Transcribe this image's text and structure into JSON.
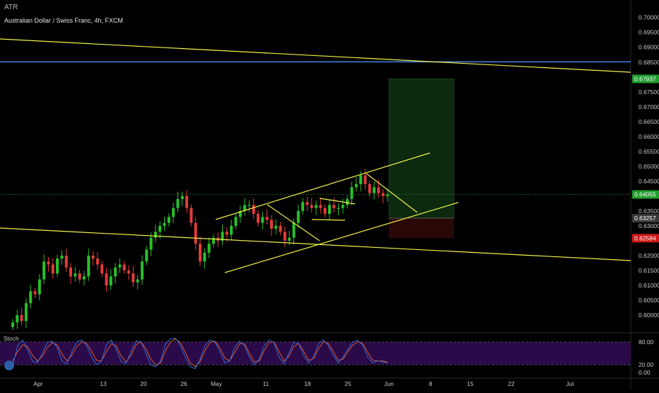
{
  "toolbar": {
    "indicator_label": "ATR"
  },
  "header": {
    "symbol_line": "Australian Dollar / Swiss Franc, 4h, FXCM"
  },
  "oscillator": {
    "label": "Stoch",
    "ticks": [
      "80.00",
      "20.00",
      "0.00"
    ]
  },
  "colors": {
    "background": "#000000",
    "axis_text": "#c8c8c8",
    "trendline": "#f2f24a",
    "hline": "#3d7bd8",
    "up_candle": "#26c229",
    "down_candle": "#e33b3b",
    "stoch_k": "#2f6bd6",
    "stoch_d": "#e05a2a",
    "stoch_band": "#2a0a48"
  },
  "chart_data": {
    "type": "candlestick",
    "ylim": [
      0.595,
      0.7035
    ],
    "y_ticks": [
      "0.70000",
      "0.69500",
      "0.69000",
      "0.68500",
      "0.68000",
      "0.67500",
      "0.67000",
      "0.66500",
      "0.66000",
      "0.65500",
      "0.65000",
      "0.64500",
      "0.63500",
      "0.63000",
      "0.62000",
      "0.61500",
      "0.61000",
      "0.60500",
      "0.60000"
    ],
    "x_ticks": [
      "Apr",
      "13",
      "20",
      "26",
      "May",
      "11",
      "18",
      "25",
      "Jun",
      "8",
      "15",
      "22",
      "Jul"
    ],
    "price_labels": [
      {
        "text": "0.67937",
        "value": 0.67937,
        "color": "#1f9d2c"
      },
      {
        "text": "0.64055",
        "value": 0.64055,
        "color": "#1f9d2c"
      },
      {
        "text": "0.63257",
        "value": 0.63257,
        "color": "#3a3a3a"
      },
      {
        "text": "0.62584",
        "value": 0.62584,
        "color": "#d01818"
      }
    ],
    "horizontal_line": 0.6851,
    "current_price": 0.64055,
    "position_tool": {
      "entry": 0.63257,
      "target": 0.67937,
      "stop": 0.62584
    },
    "close_path": [
      0.5975,
      0.6,
      0.598,
      0.604,
      0.608,
      0.607,
      0.612,
      0.618,
      0.617,
      0.614,
      0.619,
      0.62,
      0.616,
      0.613,
      0.614,
      0.612,
      0.613,
      0.62,
      0.619,
      0.617,
      0.614,
      0.61,
      0.613,
      0.616,
      0.617,
      0.615,
      0.614,
      0.611,
      0.612,
      0.618,
      0.622,
      0.626,
      0.628,
      0.63,
      0.631,
      0.633,
      0.636,
      0.639,
      0.64,
      0.636,
      0.631,
      0.624,
      0.618,
      0.621,
      0.624,
      0.626,
      0.625,
      0.628,
      0.627,
      0.63,
      0.633,
      0.635,
      0.637,
      0.637,
      0.634,
      0.631,
      0.633,
      0.632,
      0.629,
      0.63,
      0.628,
      0.625,
      0.626,
      0.631,
      0.635,
      0.638,
      0.637,
      0.636,
      0.637,
      0.636,
      0.634,
      0.637,
      0.636,
      0.636,
      0.637,
      0.639,
      0.643,
      0.644,
      0.647,
      0.644,
      0.641,
      0.643,
      0.641,
      0.64,
      0.6405
    ],
    "stoch_k": [
      20,
      70,
      85,
      60,
      30,
      25,
      50,
      78,
      82,
      65,
      30,
      22,
      55,
      80,
      85,
      70,
      40,
      20,
      30,
      72,
      85,
      60,
      28,
      24,
      55,
      82,
      80,
      50,
      20,
      15,
      30,
      75,
      88,
      90,
      70,
      40,
      15,
      10,
      35,
      70,
      85,
      80,
      55,
      25,
      30,
      65,
      82,
      70,
      40,
      20,
      35,
      70,
      85,
      78,
      40,
      22,
      50,
      80,
      75,
      45,
      25,
      40,
      75,
      85,
      70,
      45,
      25,
      40,
      62,
      80,
      84,
      70,
      40,
      25,
      30,
      28,
      25
    ],
    "stoch_d": [
      30,
      55,
      72,
      68,
      45,
      30,
      42,
      65,
      78,
      72,
      48,
      30,
      45,
      68,
      80,
      76,
      55,
      32,
      30,
      55,
      75,
      70,
      42,
      28,
      45,
      72,
      80,
      62,
      35,
      20,
      25,
      58,
      80,
      88,
      78,
      52,
      25,
      15,
      28,
      58,
      78,
      82,
      65,
      38,
      30,
      52,
      75,
      75,
      50,
      28,
      30,
      58,
      78,
      80,
      55,
      30,
      42,
      68,
      76,
      56,
      32,
      36,
      62,
      80,
      76,
      55,
      32,
      35,
      55,
      72,
      80,
      76,
      52,
      32,
      30,
      30,
      27
    ]
  }
}
